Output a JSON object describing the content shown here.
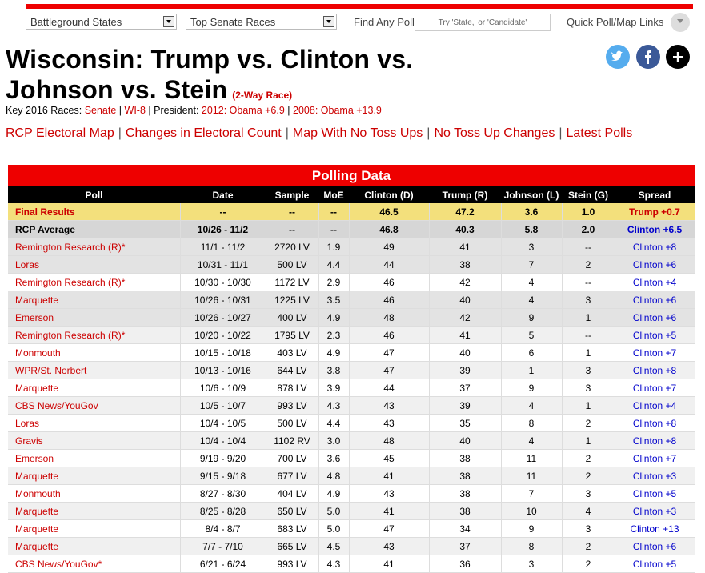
{
  "nav": {
    "dropdown1": "Battleground States",
    "dropdown2": "Top Senate Races",
    "find_label": "Find Any Poll",
    "search_placeholder": "Try 'State,' or 'Candidate'",
    "quick_links": "Quick Poll/Map Links"
  },
  "header": {
    "title": "Wisconsin: Trump vs. Clinton vs. Johnson vs. Stein",
    "subtitle": "(2-Way Race)"
  },
  "key": {
    "label": "Key 2016 Races:",
    "senate": "Senate",
    "separator": "|",
    "district": "WI-8",
    "president_label": "President:",
    "race_2012": "2012: Obama +6.9",
    "race_2008": "2008: Obama +13.9"
  },
  "links": {
    "items": [
      "RCP Electoral Map",
      "Changes in Electoral Count",
      "Map With No Toss Ups",
      "No Toss Up Changes",
      "Latest Polls"
    ],
    "separator": "|"
  },
  "table": {
    "title": "Polling Data",
    "columns": [
      "Poll",
      "Date",
      "Sample",
      "MoE",
      "Clinton (D)",
      "Trump (R)",
      "Johnson (L)",
      "Stein (G)",
      "Spread"
    ],
    "rows": [
      [
        "Final Results",
        "--",
        "--",
        "--",
        "46.5",
        "47.2",
        "3.6",
        "1.0",
        "Trump +0.7"
      ],
      [
        "RCP Average",
        "10/26 - 11/2",
        "--",
        "--",
        "46.8",
        "40.3",
        "5.8",
        "2.0",
        "Clinton +6.5"
      ],
      [
        "Remington Research (R)*",
        "11/1 - 11/2",
        "2720 LV",
        "1.9",
        "49",
        "41",
        "3",
        "--",
        "Clinton +8"
      ],
      [
        "Loras",
        "10/31 - 11/1",
        "500 LV",
        "4.4",
        "44",
        "38",
        "7",
        "2",
        "Clinton +6"
      ],
      [
        "Remington Research (R)*",
        "10/30 - 10/30",
        "1172 LV",
        "2.9",
        "46",
        "42",
        "4",
        "--",
        "Clinton +4"
      ],
      [
        "Marquette",
        "10/26 - 10/31",
        "1225 LV",
        "3.5",
        "46",
        "40",
        "4",
        "3",
        "Clinton +6"
      ],
      [
        "Emerson",
        "10/26 - 10/27",
        "400 LV",
        "4.9",
        "48",
        "42",
        "9",
        "1",
        "Clinton +6"
      ],
      [
        "Remington Research (R)*",
        "10/20 - 10/22",
        "1795 LV",
        "2.3",
        "46",
        "41",
        "5",
        "--",
        "Clinton +5"
      ],
      [
        "Monmouth",
        "10/15 - 10/18",
        "403 LV",
        "4.9",
        "47",
        "40",
        "6",
        "1",
        "Clinton +7"
      ],
      [
        "WPR/St. Norbert",
        "10/13 - 10/16",
        "644 LV",
        "3.8",
        "47",
        "39",
        "1",
        "3",
        "Clinton +8"
      ],
      [
        "Marquette",
        "10/6 - 10/9",
        "878 LV",
        "3.9",
        "44",
        "37",
        "9",
        "3",
        "Clinton +7"
      ],
      [
        "CBS News/YouGov",
        "10/5 - 10/7",
        "993 LV",
        "4.3",
        "43",
        "39",
        "4",
        "1",
        "Clinton +4"
      ],
      [
        "Loras",
        "10/4 - 10/5",
        "500 LV",
        "4.4",
        "43",
        "35",
        "8",
        "2",
        "Clinton +8"
      ],
      [
        "Gravis",
        "10/4 - 10/4",
        "1102 RV",
        "3.0",
        "48",
        "40",
        "4",
        "1",
        "Clinton +8"
      ],
      [
        "Emerson",
        "9/19 - 9/20",
        "700 LV",
        "3.6",
        "45",
        "38",
        "11",
        "2",
        "Clinton +7"
      ],
      [
        "Marquette",
        "9/15 - 9/18",
        "677 LV",
        "4.8",
        "41",
        "38",
        "11",
        "2",
        "Clinton +3"
      ],
      [
        "Monmouth",
        "8/27 - 8/30",
        "404 LV",
        "4.9",
        "43",
        "38",
        "7",
        "3",
        "Clinton +5"
      ],
      [
        "Marquette",
        "8/25 - 8/28",
        "650 LV",
        "5.0",
        "41",
        "38",
        "10",
        "4",
        "Clinton +3"
      ],
      [
        "Marquette",
        "8/4 - 8/7",
        "683 LV",
        "5.0",
        "47",
        "34",
        "9",
        "3",
        "Clinton +13"
      ],
      [
        "Marquette",
        "7/7 - 7/10",
        "665 LV",
        "4.5",
        "43",
        "37",
        "8",
        "2",
        "Clinton +6"
      ],
      [
        "CBS News/YouGov*",
        "6/21 - 6/24",
        "993 LV",
        "4.3",
        "41",
        "36",
        "3",
        "2",
        "Clinton +5"
      ]
    ]
  }
}
